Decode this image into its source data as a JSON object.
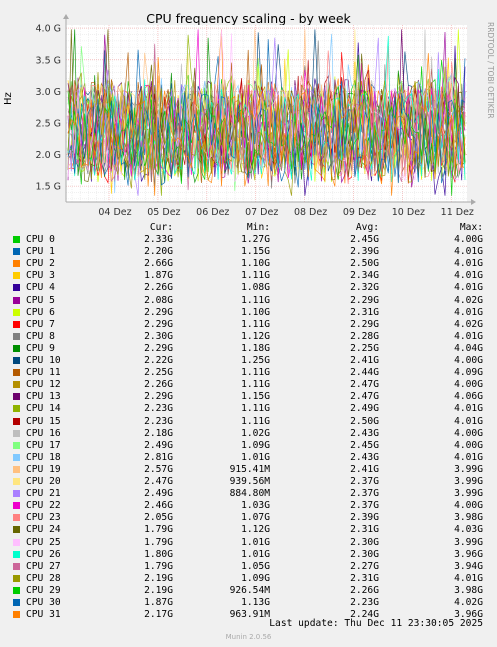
{
  "chart_data": {
    "type": "line",
    "title": "CPU frequency scaling - by week",
    "side_label": "RRDTOOL / TOBI OETIKER",
    "ylabel": "Hz",
    "yticks": [
      "1.5 G",
      "2.0 G",
      "2.5 G",
      "3.0 G",
      "3.5 G",
      "4.0 G"
    ],
    "ytick_values": [
      1.5,
      2.0,
      2.5,
      3.0,
      3.5,
      4.0
    ],
    "ylim": [
      1.25,
      4.05
    ],
    "xticks": [
      "04 Dez",
      "05 Dez",
      "06 Dez",
      "07 Dez",
      "08 Dez",
      "09 Dez",
      "10 Dez",
      "11 Dez"
    ],
    "grid": true,
    "headers": {
      "cur": "Cur:",
      "min": "Min:",
      "avg": "Avg:",
      "max": "Max:"
    },
    "series": [
      {
        "name": "CPU 0",
        "color": "#00cc00",
        "cur": "2.33G",
        "min": "1.27G",
        "avg": "2.45G",
        "max": "4.00G"
      },
      {
        "name": "CPU 1",
        "color": "#0066b3",
        "cur": "2.20G",
        "min": "1.15G",
        "avg": "2.39G",
        "max": "4.01G"
      },
      {
        "name": "CPU 2",
        "color": "#ff8000",
        "cur": "2.66G",
        "min": "1.10G",
        "avg": "2.50G",
        "max": "4.01G"
      },
      {
        "name": "CPU 3",
        "color": "#ffcc00",
        "cur": "1.87G",
        "min": "1.11G",
        "avg": "2.34G",
        "max": "4.01G"
      },
      {
        "name": "CPU 4",
        "color": "#330099",
        "cur": "2.26G",
        "min": "1.08G",
        "avg": "2.32G",
        "max": "4.01G"
      },
      {
        "name": "CPU 5",
        "color": "#990099",
        "cur": "2.08G",
        "min": "1.11G",
        "avg": "2.29G",
        "max": "4.02G"
      },
      {
        "name": "CPU 6",
        "color": "#ccff00",
        "cur": "2.29G",
        "min": "1.10G",
        "avg": "2.31G",
        "max": "4.01G"
      },
      {
        "name": "CPU 7",
        "color": "#ff0000",
        "cur": "2.29G",
        "min": "1.11G",
        "avg": "2.29G",
        "max": "4.02G"
      },
      {
        "name": "CPU 8",
        "color": "#808080",
        "cur": "2.30G",
        "min": "1.12G",
        "avg": "2.28G",
        "max": "4.01G"
      },
      {
        "name": "CPU 9",
        "color": "#008f00",
        "cur": "2.29G",
        "min": "1.18G",
        "avg": "2.25G",
        "max": "4.04G"
      },
      {
        "name": "CPU 10",
        "color": "#00487d",
        "cur": "2.22G",
        "min": "1.25G",
        "avg": "2.41G",
        "max": "4.00G"
      },
      {
        "name": "CPU 11",
        "color": "#b35a00",
        "cur": "2.25G",
        "min": "1.11G",
        "avg": "2.44G",
        "max": "4.09G"
      },
      {
        "name": "CPU 12",
        "color": "#b38f00",
        "cur": "2.26G",
        "min": "1.11G",
        "avg": "2.47G",
        "max": "4.00G"
      },
      {
        "name": "CPU 13",
        "color": "#6b006b",
        "cur": "2.29G",
        "min": "1.15G",
        "avg": "2.47G",
        "max": "4.06G"
      },
      {
        "name": "CPU 14",
        "color": "#8fb300",
        "cur": "2.23G",
        "min": "1.11G",
        "avg": "2.49G",
        "max": "4.01G"
      },
      {
        "name": "CPU 15",
        "color": "#b30000",
        "cur": "2.23G",
        "min": "1.11G",
        "avg": "2.50G",
        "max": "4.01G"
      },
      {
        "name": "CPU 16",
        "color": "#bebebe",
        "cur": "2.18G",
        "min": "1.02G",
        "avg": "2.43G",
        "max": "4.00G"
      },
      {
        "name": "CPU 17",
        "color": "#80ff80",
        "cur": "2.49G",
        "min": "1.09G",
        "avg": "2.45G",
        "max": "4.00G"
      },
      {
        "name": "CPU 18",
        "color": "#80c9ff",
        "cur": "2.81G",
        "min": "1.01G",
        "avg": "2.43G",
        "max": "4.01G"
      },
      {
        "name": "CPU 19",
        "color": "#ffc080",
        "cur": "2.57G",
        "min": "915.41M",
        "avg": "2.41G",
        "max": "3.99G"
      },
      {
        "name": "CPU 20",
        "color": "#ffe680",
        "cur": "2.47G",
        "min": "939.56M",
        "avg": "2.37G",
        "max": "3.99G"
      },
      {
        "name": "CPU 21",
        "color": "#aa80ff",
        "cur": "2.49G",
        "min": "884.80M",
        "avg": "2.37G",
        "max": "3.99G"
      },
      {
        "name": "CPU 22",
        "color": "#ee00cc",
        "cur": "2.46G",
        "min": "1.03G",
        "avg": "2.37G",
        "max": "4.00G"
      },
      {
        "name": "CPU 23",
        "color": "#ff8080",
        "cur": "2.05G",
        "min": "1.07G",
        "avg": "2.39G",
        "max": "3.98G"
      },
      {
        "name": "CPU 24",
        "color": "#666600",
        "cur": "1.79G",
        "min": "1.12G",
        "avg": "2.31G",
        "max": "4.03G"
      },
      {
        "name": "CPU 25",
        "color": "#ffbfff",
        "cur": "1.79G",
        "min": "1.01G",
        "avg": "2.30G",
        "max": "3.99G"
      },
      {
        "name": "CPU 26",
        "color": "#00ffcc",
        "cur": "1.80G",
        "min": "1.01G",
        "avg": "2.30G",
        "max": "3.96G"
      },
      {
        "name": "CPU 27",
        "color": "#cc6699",
        "cur": "1.79G",
        "min": "1.05G",
        "avg": "2.27G",
        "max": "3.94G"
      },
      {
        "name": "CPU 28",
        "color": "#999900",
        "cur": "2.19G",
        "min": "1.09G",
        "avg": "2.31G",
        "max": "4.01G"
      },
      {
        "name": "CPU 29",
        "color": "#00cc00",
        "cur": "2.19G",
        "min": "926.54M",
        "avg": "2.26G",
        "max": "3.98G"
      },
      {
        "name": "CPU 30",
        "color": "#0066b3",
        "cur": "1.87G",
        "min": "1.13G",
        "avg": "2.23G",
        "max": "4.02G"
      },
      {
        "name": "CPU 31",
        "color": "#ff8000",
        "cur": "2.17G",
        "min": "963.91M",
        "avg": "2.24G",
        "max": "3.96G"
      }
    ]
  },
  "footer": {
    "last_update": "Last update: Thu Dec 11 23:30:05 2025",
    "munin": "Munin 2.0.56"
  }
}
